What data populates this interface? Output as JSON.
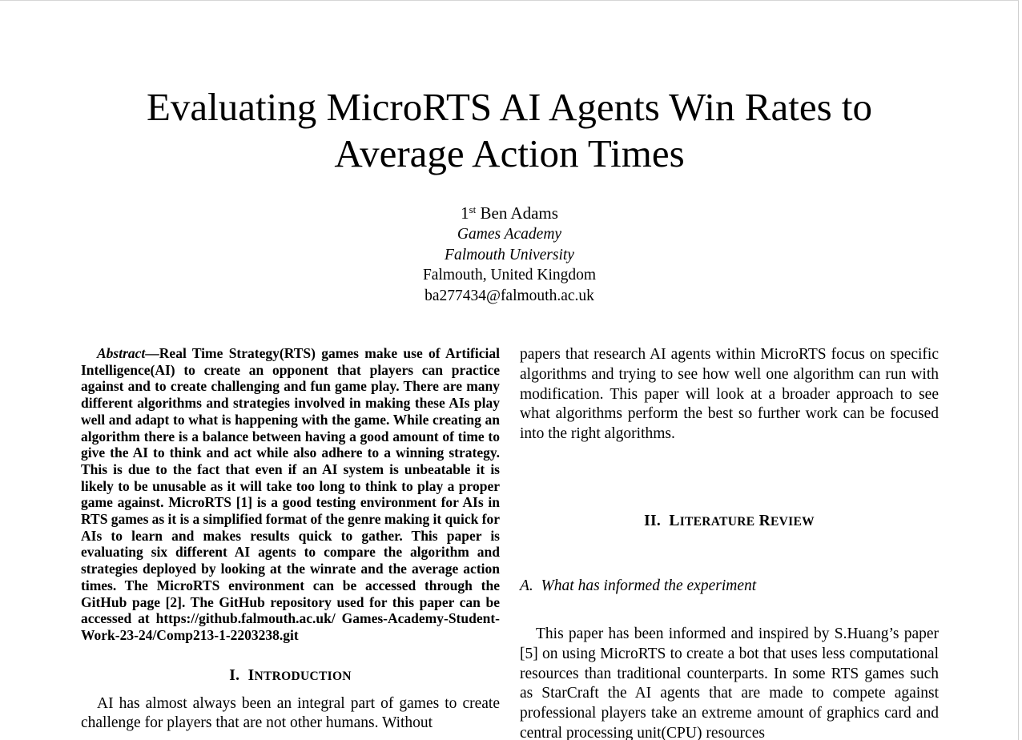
{
  "title": "Evaluating MicroRTS AI Agents Win Rates to Average Action Times",
  "author": {
    "rank": "1",
    "rank_suffix": "st",
    "name": "Ben Adams",
    "department": "Games Academy",
    "university": "Falmouth University",
    "location": "Falmouth, United Kingdom",
    "email": "ba277434@falmouth.ac.uk"
  },
  "abstract": {
    "label": "Abstract",
    "dash": "—",
    "text": "Real Time Strategy(RTS) games make use of Artificial Intelligence(AI) to create an opponent that players can practice against and to create challenging and fun game play. There are many different algorithms and strategies involved in making these AIs play well and adapt to what is happening with the game. While creating an algorithm there is a balance between having a good amount of time to give the AI to think and act while also adhere to a winning strategy. This is due to the fact that even if an AI system is unbeatable it is likely to be unusable as it will take too long to think to play a proper game against. MicroRTS [1] is a good testing environment for AIs in RTS games as it is a simplified format of the genre making it quick for AIs to learn and makes results quick to gather. This paper is evaluating six different AI agents to compare the algorithm and strategies deployed by looking at the winrate and the average action times. The MicroRTS environment can be accessed through the GitHub page [2]. The GitHub repository used for this paper can be accessed at https://github.falmouth.ac.uk/ Games-Academy-Student-Work-23-24/Comp213-1-2203238.git"
  },
  "section1": {
    "number": "I.",
    "title_first": "I",
    "title_rest": "NTRODUCTION",
    "text": "AI has almost always been an integral part of games to create challenge for players that are not other humans. Without"
  },
  "right_col": {
    "continuation": "papers that research AI agents within MicroRTS focus on specific algorithms and trying to see how well one algorithm can run with modification. This paper will look at a broader approach to see what algorithms perform the best so further work can be focused into the right algorithms.",
    "section2": {
      "number": "II.",
      "title_first_1": "L",
      "title_rest_1": "ITERATURE",
      "title_first_2": "R",
      "title_rest_2": "EVIEW"
    },
    "subsection_a": {
      "label": "A.",
      "title": "What has informed the experiment"
    },
    "subsection_a_text": "This paper has been informed and inspired by S.Huang’s paper [5] on using MicroRTS to create a bot that uses less computational resources than traditional counterparts. In some RTS games such as StarCraft the AI agents that are made to compete against professional players take an extreme amount of graphics card and central processing unit(CPU) resources"
  }
}
